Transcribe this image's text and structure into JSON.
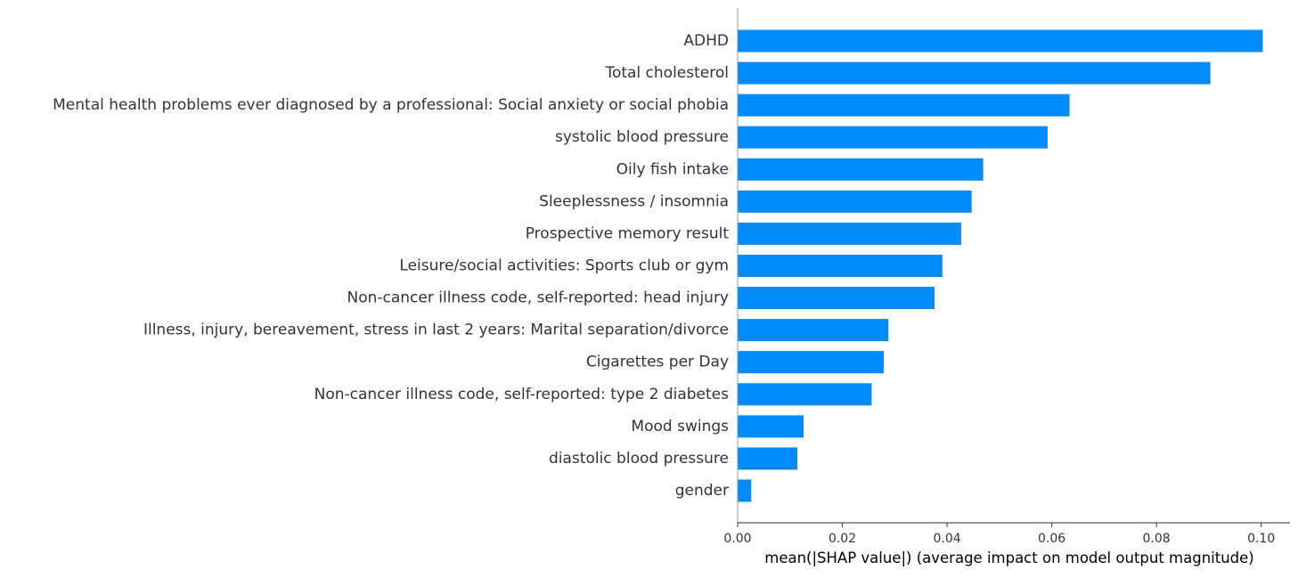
{
  "chart_data": {
    "type": "bar",
    "orientation": "horizontal",
    "title": "",
    "xlabel": "mean(|SHAP value|) (average impact on model output magnitude)",
    "ylabel": "",
    "xlim": [
      0,
      0.1055
    ],
    "xticks": [
      {
        "value": 0.0,
        "label": "0.00"
      },
      {
        "value": 0.02,
        "label": "0.02"
      },
      {
        "value": 0.04,
        "label": "0.04"
      },
      {
        "value": 0.06,
        "label": "0.06"
      },
      {
        "value": 0.08,
        "label": "0.08"
      },
      {
        "value": 0.1,
        "label": "0.10"
      }
    ],
    "grid": false,
    "bar_color": "#008bfb",
    "categories": [
      "ADHD",
      "Total cholesterol",
      "Mental health problems ever diagnosed by a professional: Social anxiety or social phobia",
      "systolic blood pressure",
      "Oily fish intake",
      "Sleeplessness / insomnia",
      "Prospective memory result",
      "Leisure/social activities: Sports club or gym",
      "Non-cancer illness code, self-reported: head injury",
      "Illness, injury, bereavement, stress in last 2 years: Marital separation/divorce",
      "Cigarettes per Day",
      "Non-cancer illness code, self-reported: type 2 diabetes",
      "Mood swings",
      "diastolic blood pressure",
      "gender"
    ],
    "values": [
      0.1003,
      0.0903,
      0.0634,
      0.0592,
      0.0469,
      0.0447,
      0.0427,
      0.0391,
      0.0376,
      0.0288,
      0.0279,
      0.0256,
      0.0126,
      0.0114,
      0.0026
    ]
  }
}
